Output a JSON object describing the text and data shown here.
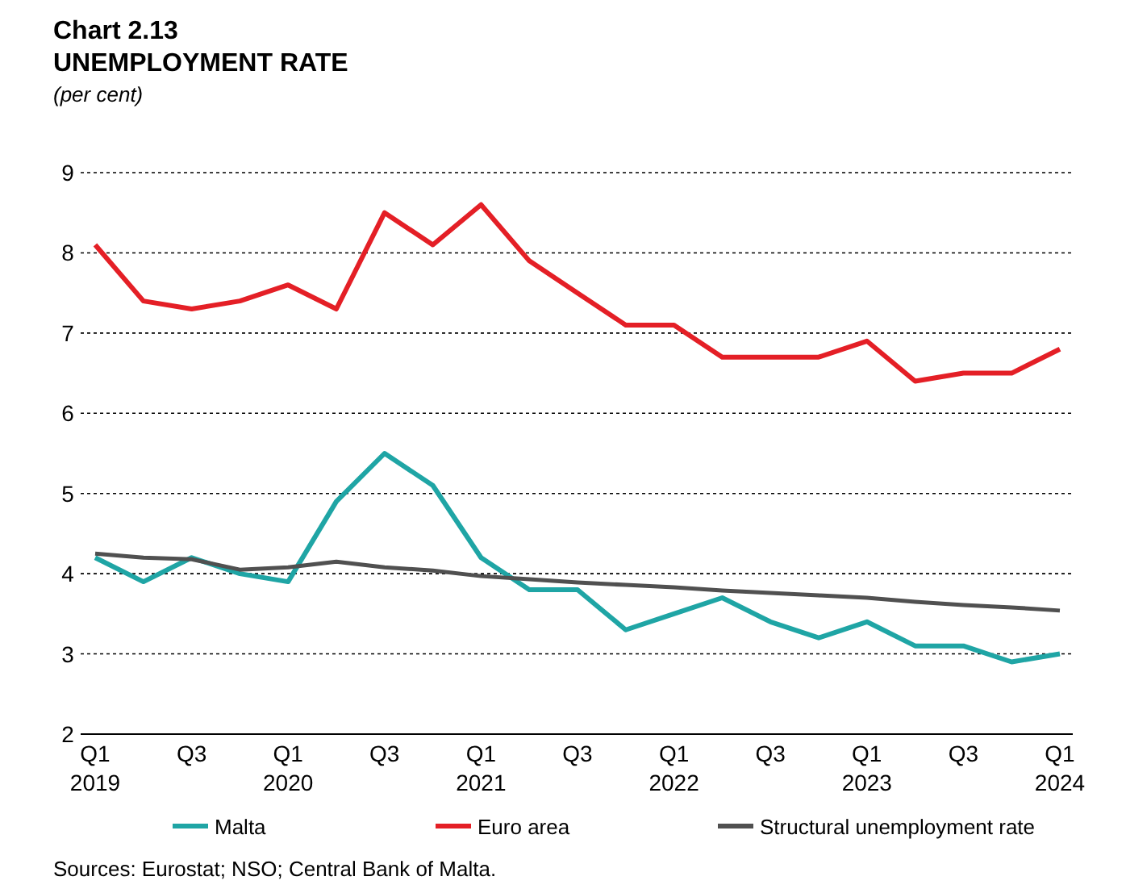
{
  "chart_data": {
    "type": "line",
    "title": "Chart 2.13",
    "subtitle": "UNEMPLOYMENT RATE",
    "ylabel": "(per cent)",
    "categories": [
      "Q1\n2019",
      null,
      "Q3",
      null,
      "Q1\n2020",
      null,
      "Q3",
      null,
      "Q1\n2021",
      null,
      "Q3",
      null,
      "Q1\n2022",
      null,
      "Q3",
      null,
      "Q1\n2023",
      null,
      "Q3",
      null,
      "Q1\n2024"
    ],
    "series": [
      {
        "name": "Malta",
        "color": "#1fa5a5",
        "values": [
          4.2,
          3.9,
          4.2,
          4.0,
          3.9,
          4.9,
          5.5,
          5.1,
          4.2,
          3.8,
          3.8,
          3.3,
          3.5,
          3.7,
          3.4,
          3.2,
          3.4,
          3.1,
          3.1,
          2.9,
          3.0
        ]
      },
      {
        "name": "Euro area",
        "color": "#e41f26",
        "values": [
          8.1,
          7.4,
          7.3,
          7.4,
          7.6,
          7.3,
          8.5,
          8.1,
          8.6,
          7.9,
          7.5,
          7.1,
          7.1,
          6.7,
          6.7,
          6.7,
          6.9,
          6.4,
          6.5,
          6.5,
          6.8
        ]
      },
      {
        "name": "Structural unemployment rate",
        "color": "#505050",
        "values": [
          4.25,
          4.2,
          4.18,
          4.05,
          4.08,
          4.15,
          4.08,
          4.04,
          3.97,
          3.93,
          3.89,
          3.86,
          3.83,
          3.79,
          3.76,
          3.73,
          3.7,
          3.65,
          3.61,
          3.58,
          3.54
        ]
      }
    ],
    "ylim": [
      2,
      9
    ],
    "yticks": [
      2,
      3,
      4,
      5,
      6,
      7,
      8,
      9
    ],
    "grid": "y",
    "legend": "bottom",
    "line_style": "solid",
    "marker": "none",
    "annotations": [
      "Sources: Eurostat; NSO; Central Bank of Malta."
    ]
  }
}
